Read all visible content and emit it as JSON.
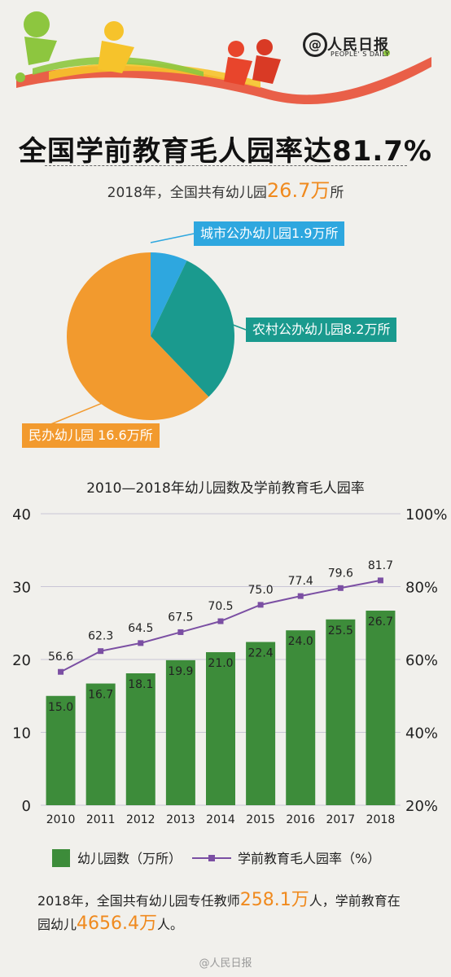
{
  "header": {
    "logo_name": "人民日报",
    "logo_sub": "PEOPLE' S DAILY"
  },
  "title": "全国学前教育毛人园率达81.7%",
  "subtitle": {
    "prefix": "2018年，全国共有幼儿园",
    "highlight": "26.7万",
    "suffix": "所"
  },
  "pie_chart": {
    "type": "pie",
    "labels": [
      "城市公办幼儿园1.9万所",
      "农村公办幼儿园8.2万所",
      "民办幼儿园 16.6万所"
    ],
    "values": [
      1.9,
      8.2,
      16.6
    ],
    "colors": [
      "#2ea7df",
      "#1a9a8e",
      "#f29a2e"
    ]
  },
  "chart_data": {
    "type": "bar",
    "title": "2010—2018年幼儿园数及学前教育毛人园率",
    "categories": [
      "2010",
      "2011",
      "2012",
      "2013",
      "2014",
      "2015",
      "2016",
      "2017",
      "2018"
    ],
    "series": [
      {
        "name": "幼儿园数（万所）",
        "type": "bar",
        "axis": "left",
        "color": "#3d8c3a",
        "values": [
          15.0,
          16.7,
          18.1,
          19.9,
          21.0,
          22.4,
          24.0,
          25.5,
          26.7
        ]
      },
      {
        "name": "学前教育毛人园率（%）",
        "type": "line",
        "axis": "right",
        "color": "#7b4fa3",
        "values": [
          56.6,
          62.3,
          64.5,
          67.5,
          70.5,
          75.0,
          77.4,
          79.6,
          81.7
        ]
      }
    ],
    "bar_labels": [
      "15.0",
      "16.7",
      "18.1",
      "19.9",
      "21.0",
      "22.4",
      "24.0",
      "25.5",
      "26.7"
    ],
    "line_labels": [
      "56.6",
      "62.3",
      "64.5",
      "67.5",
      "70.5",
      "75.0",
      "77.4",
      "79.6",
      "81.7"
    ],
    "y_left": {
      "ticks": [
        "0",
        "10",
        "20",
        "30",
        "40"
      ],
      "range": [
        0,
        40
      ]
    },
    "y_right": {
      "ticks": [
        "20%",
        "40%",
        "60%",
        "80%",
        "100%"
      ],
      "range": [
        20,
        100
      ]
    },
    "legend": {
      "placement": "bottom"
    },
    "grid": "horizontal"
  },
  "footer": {
    "line1_a": "2018年，全国共有幼儿园专任教师",
    "line1_hl": "258.1万",
    "line1_b": "人，学前教育在",
    "line2_a": "园幼儿",
    "line2_hl": "4656.4万",
    "line2_b": "人。"
  },
  "watermark": "@人民日报"
}
